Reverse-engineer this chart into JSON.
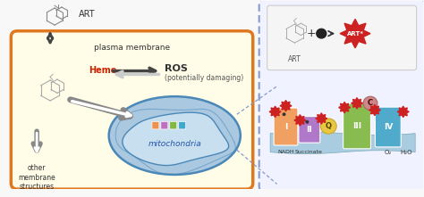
{
  "bg_color": "#f8f8f8",
  "cell_bg": "#fffde8",
  "cell_border": "#e07820",
  "mito_bg": "#aac8e0",
  "mito_border": "#4a88b8",
  "mito_inner_bg": "#c8dff0",
  "plasma_label": "plasma membrane",
  "heme_label": "Heme",
  "heme_color": "#cc2200",
  "ros_label": "ROS",
  "ros_sub": "(potentially damaging)",
  "art_label": "ART",
  "mito_label": "mitochondria",
  "other_label": "other\nmembrane\nstructures",
  "zoom_bg": "#f0f2ff",
  "zoom_border": "#8899cc",
  "inset_bg": "#f5f5f5",
  "inset_border": "#cccccc",
  "nadh_label": "NADH",
  "succinate_label": "Succinate",
  "q_label": "Q",
  "c_label": "C",
  "o2_label": "O₂",
  "h2o_label": "H₂O",
  "comp_colors": [
    "#f0a060",
    "#b080c8",
    "#88bb50",
    "#5aabcc"
  ],
  "comp_labels": [
    "I",
    "II",
    "III",
    "IV"
  ],
  "red_star": "#cc2222",
  "arrow_gray": "#888888",
  "arrow_dark": "#444444"
}
